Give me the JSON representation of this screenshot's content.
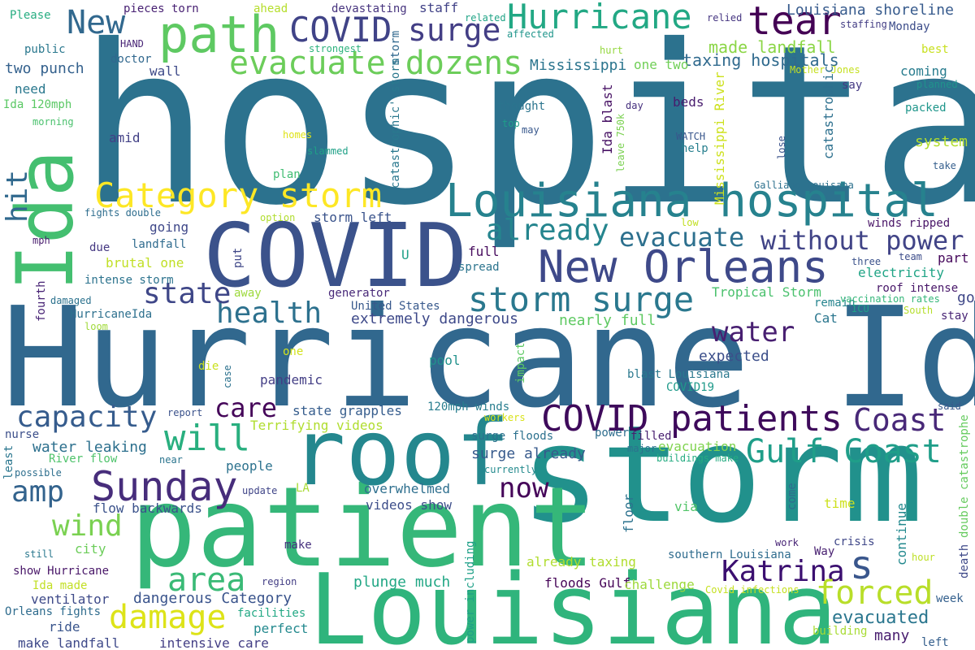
{
  "words": [
    {
      "text": "hospital",
      "color": "#2c728e",
      "vertical": false
    },
    {
      "text": "Hurricane Ida",
      "color": "#31688e",
      "vertical": false
    },
    {
      "text": "storm",
      "color": "#21918c",
      "vertical": false
    },
    {
      "text": "patient",
      "color": "#35b779",
      "vertical": false
    },
    {
      "text": "Louisiana",
      "color": "#2fb47c",
      "vertical": false
    },
    {
      "text": "roof",
      "color": "#24878e",
      "vertical": false
    },
    {
      "text": "COVID",
      "color": "#3b528b",
      "vertical": false
    },
    {
      "text": "Ida",
      "color": "#44bf70",
      "vertical": true
    },
    {
      "text": "path",
      "color": "#5ec962",
      "vertical": false
    },
    {
      "text": "Louisiana hospital",
      "color": "#26828e",
      "vertical": false
    },
    {
      "text": "New Orleans",
      "color": "#3e4989",
      "vertical": false
    },
    {
      "text": "Hurricane",
      "color": "#22a884",
      "vertical": false
    },
    {
      "text": "tear",
      "color": "#440154",
      "vertical": false
    },
    {
      "text": "Sunday",
      "color": "#472d7b",
      "vertical": false
    },
    {
      "text": "COVID patients",
      "color": "#3e0a5b",
      "vertical": false
    },
    {
      "text": "COVID",
      "color": "#404387",
      "vertical": false
    },
    {
      "text": "surge",
      "color": "#433e85",
      "vertical": false
    },
    {
      "text": "New",
      "color": "#31688e",
      "vertical": false
    },
    {
      "text": "Category storm",
      "color": "#fde725",
      "vertical": false
    },
    {
      "text": "evacuate dozens",
      "color": "#6ccd5a",
      "vertical": false
    },
    {
      "text": "storm surge",
      "color": "#2a788e",
      "vertical": false
    },
    {
      "text": "Gulf Coast",
      "color": "#1f9e89",
      "vertical": false
    },
    {
      "text": "Katrina",
      "color": "#3b0f70",
      "vertical": false
    },
    {
      "text": "Coast",
      "color": "#482878",
      "vertical": false
    },
    {
      "text": "s",
      "color": "#39568c",
      "vertical": false
    },
    {
      "text": "damage",
      "color": "#dde318",
      "vertical": false
    },
    {
      "text": "forced",
      "color": "#b8de29",
      "vertical": false
    },
    {
      "text": "area",
      "color": "#3aba76",
      "vertical": false
    },
    {
      "text": "will",
      "color": "#29af7f",
      "vertical": false
    },
    {
      "text": "amp",
      "color": "#33638d",
      "vertical": false
    },
    {
      "text": "capacity",
      "color": "#365c8d",
      "vertical": false
    },
    {
      "text": "wind",
      "color": "#7ad151",
      "vertical": false
    },
    {
      "text": "health",
      "color": "#2d718e",
      "vertical": false
    },
    {
      "text": "state",
      "color": "#3f4788",
      "vertical": false
    },
    {
      "text": "already",
      "color": "#25858e",
      "vertical": false
    },
    {
      "text": "evacuate",
      "color": "#2d708e",
      "vertical": false
    },
    {
      "text": "without power",
      "color": "#414487",
      "vertical": false
    },
    {
      "text": "water",
      "color": "#481f71",
      "vertical": false
    },
    {
      "text": "care",
      "color": "#46075a",
      "vertical": false
    },
    {
      "text": "now",
      "color": "#450559",
      "vertical": false
    },
    {
      "text": "hit",
      "color": "#30698e",
      "vertical": true
    },
    {
      "text": "evacuated",
      "color": "#2a768e",
      "vertical": false
    },
    {
      "text": "plunge much",
      "color": "#22a785",
      "vertical": false
    },
    {
      "text": "dangerous Category",
      "color": "#3a548c",
      "vertical": false
    },
    {
      "text": "Louisiana shoreline",
      "color": "#375b8d",
      "vertical": false
    },
    {
      "text": "made landfall",
      "color": "#8bd646",
      "vertical": false
    },
    {
      "text": "taxing hospitals",
      "color": "#306a8e",
      "vertical": false
    },
    {
      "text": "Mississippi",
      "color": "#2b758e",
      "vertical": false
    },
    {
      "text": "staff",
      "color": "#414287",
      "vertical": false
    },
    {
      "text": "devastating",
      "color": "#46337e",
      "vertical": false
    },
    {
      "text": "pieces torn",
      "color": "#482173",
      "vertical": false
    },
    {
      "text": "ahead",
      "color": "#b5de2b",
      "vertical": false
    },
    {
      "text": "Please",
      "color": "#27ad81",
      "vertical": false
    },
    {
      "text": "related",
      "color": "#20a486",
      "vertical": false
    },
    {
      "text": "affected",
      "color": "#1f958b",
      "vertical": false
    },
    {
      "text": "relied",
      "color": "#453581",
      "vertical": false
    },
    {
      "text": "staffing",
      "color": "#433d84",
      "vertical": false
    },
    {
      "text": "Monday",
      "color": "#3d4d8a",
      "vertical": false
    },
    {
      "text": "best",
      "color": "#c8e020",
      "vertical": false
    },
    {
      "text": "HAND",
      "color": "#482576",
      "vertical": false
    },
    {
      "text": "strongest",
      "color": "#2db27d",
      "vertical": false
    },
    {
      "text": "public",
      "color": "#2a788e",
      "vertical": false
    },
    {
      "text": "doctor",
      "color": "#31688e",
      "vertical": false
    },
    {
      "text": "two punch",
      "color": "#34618d",
      "vertical": false
    },
    {
      "text": "wall",
      "color": "#3e4a89",
      "vertical": false
    },
    {
      "text": "need",
      "color": "#2a788e",
      "vertical": false
    },
    {
      "text": "Ida 120mph",
      "color": "#5ac864",
      "vertical": false
    },
    {
      "text": "morning",
      "color": "#4ac16d",
      "vertical": false
    },
    {
      "text": "amid",
      "color": "#424086",
      "vertical": false
    },
    {
      "text": "homes",
      "color": "#dfe318",
      "vertical": false
    },
    {
      "text": "slammed",
      "color": "#1fa187",
      "vertical": false
    },
    {
      "text": "plan",
      "color": "#40bd72",
      "vertical": false
    },
    {
      "text": "one two",
      "color": "#70cf57",
      "vertical": false
    },
    {
      "text": "hurt",
      "color": "#95d840",
      "vertical": false
    },
    {
      "text": "coming",
      "color": "#287c8e",
      "vertical": false
    },
    {
      "text": "say",
      "color": "#443983",
      "vertical": false
    },
    {
      "text": "planned",
      "color": "#20938c",
      "vertical": false
    },
    {
      "text": "packed",
      "color": "#1f968b",
      "vertical": false
    },
    {
      "text": "thought",
      "color": "#2b748e",
      "vertical": false
    },
    {
      "text": "top",
      "color": "#1f9e89",
      "vertical": false
    },
    {
      "text": "may",
      "color": "#38588c",
      "vertical": false
    },
    {
      "text": "day",
      "color": "#46307e",
      "vertical": false
    },
    {
      "text": "beds",
      "color": "#481c6e",
      "vertical": false
    },
    {
      "text": "help",
      "color": "#277f8e",
      "vertical": false
    },
    {
      "text": "WATCH",
      "color": "#39568c",
      "vertical": false
    },
    {
      "text": "system",
      "color": "#b2dd2d",
      "vertical": false
    },
    {
      "text": "take",
      "color": "#355f8d",
      "vertical": false
    },
    {
      "text": "Galliano Louisana",
      "color": "#2d718e",
      "vertical": false
    },
    {
      "text": "low",
      "color": "#c2df23",
      "vertical": false
    },
    {
      "text": "option",
      "color": "#b0dd2f",
      "vertical": false
    },
    {
      "text": "fights double",
      "color": "#2e6d8e",
      "vertical": false
    },
    {
      "text": "going",
      "color": "#3f4889",
      "vertical": false
    },
    {
      "text": "storm left",
      "color": "#3a538b",
      "vertical": false
    },
    {
      "text": "mph",
      "color": "#481b6d",
      "vertical": false
    },
    {
      "text": "landfall",
      "color": "#2f6b8e",
      "vertical": false
    },
    {
      "text": "due",
      "color": "#453882",
      "vertical": false
    },
    {
      "text": "brutal one",
      "color": "#c0df25",
      "vertical": false
    },
    {
      "text": "intense storm",
      "color": "#2c738e",
      "vertical": false
    },
    {
      "text": "full",
      "color": "#460a5d",
      "vertical": false
    },
    {
      "text": "spread",
      "color": "#2b748e",
      "vertical": false
    },
    {
      "text": "U",
      "color": "#1fa088",
      "vertical": false
    },
    {
      "text": "winds ripped",
      "color": "#481467",
      "vertical": false
    },
    {
      "text": "team",
      "color": "#3d4d8a",
      "vertical": false
    },
    {
      "text": "three",
      "color": "#3b528b",
      "vertical": false
    },
    {
      "text": "part",
      "color": "#46085c",
      "vertical": false
    },
    {
      "text": "electricity",
      "color": "#20a486",
      "vertical": false
    },
    {
      "text": "roof intense",
      "color": "#481769",
      "vertical": false
    },
    {
      "text": "go",
      "color": "#3f4788",
      "vertical": false
    },
    {
      "text": "Tropical Storm",
      "color": "#4ac16d",
      "vertical": false
    },
    {
      "text": "generator",
      "color": "#482979",
      "vertical": false
    },
    {
      "text": "remain",
      "color": "#25848e",
      "vertical": false
    },
    {
      "text": "vaccination rates",
      "color": "#34b679",
      "vertical": false
    },
    {
      "text": "ICU",
      "color": "#1fa188",
      "vertical": false
    },
    {
      "text": "Cat",
      "color": "#2a768e",
      "vertical": false
    },
    {
      "text": "stay",
      "color": "#482475",
      "vertical": false
    },
    {
      "text": "South",
      "color": "#b5de2b",
      "vertical": false
    },
    {
      "text": "damaged",
      "color": "#2c728e",
      "vertical": false
    },
    {
      "text": "away",
      "color": "#9dd93b",
      "vertical": false
    },
    {
      "text": "HurricaneIda",
      "color": "#2d708e",
      "vertical": false
    },
    {
      "text": "United States",
      "color": "#38598c",
      "vertical": false
    },
    {
      "text": "extremely dangerous",
      "color": "#3e4989",
      "vertical": false
    },
    {
      "text": "nearly full",
      "color": "#5ec962",
      "vertical": false
    },
    {
      "text": "loom",
      "color": "#a0da39",
      "vertical": false
    },
    {
      "text": "one",
      "color": "#d2e21b",
      "vertical": false
    },
    {
      "text": "pool",
      "color": "#21918c",
      "vertical": false
    },
    {
      "text": "expected",
      "color": "#3c4f8a",
      "vertical": false
    },
    {
      "text": "die",
      "color": "#cae11f",
      "vertical": false
    },
    {
      "text": "pandemic",
      "color": "#433e85",
      "vertical": false
    },
    {
      "text": "blast Louisiana",
      "color": "#2a788e",
      "vertical": false
    },
    {
      "text": "COVID19",
      "color": "#1f9a8a",
      "vertical": false
    },
    {
      "text": "report",
      "color": "#3b528b",
      "vertical": false
    },
    {
      "text": "state grapples",
      "color": "#365d8d",
      "vertical": false
    },
    {
      "text": "120mph winds",
      "color": "#287d8e",
      "vertical": false
    },
    {
      "text": "workers",
      "color": "#d8e219",
      "vertical": false
    },
    {
      "text": "said",
      "color": "#38598c",
      "vertical": false
    },
    {
      "text": "nurse",
      "color": "#3c4f8a",
      "vertical": false
    },
    {
      "text": "Terrifying videos",
      "color": "#b0dd2f",
      "vertical": false
    },
    {
      "text": "power",
      "color": "#2e6e8e",
      "vertical": false
    },
    {
      "text": "filled",
      "color": "#481f70",
      "vertical": false
    },
    {
      "text": "surge floods",
      "color": "#2c718e",
      "vertical": false
    },
    {
      "text": "major",
      "color": "#2c728e",
      "vertical": false
    },
    {
      "text": "water leaking",
      "color": "#2d708e",
      "vertical": false
    },
    {
      "text": "surge already",
      "color": "#375a8c",
      "vertical": false
    },
    {
      "text": "evacuation",
      "color": "#7fd34e",
      "vertical": false
    },
    {
      "text": "River flow",
      "color": "#4ec36b",
      "vertical": false
    },
    {
      "text": "near",
      "color": "#2b758e",
      "vertical": false
    },
    {
      "text": "buildings make",
      "color": "#25ac82",
      "vertical": false
    },
    {
      "text": "possible",
      "color": "#2e6f8e",
      "vertical": false
    },
    {
      "text": "currently",
      "color": "#238a8d",
      "vertical": false
    },
    {
      "text": "people",
      "color": "#2c728e",
      "vertical": false
    },
    {
      "text": "city",
      "color": "#6ccd5a",
      "vertical": false
    },
    {
      "text": "LA",
      "color": "#a8db34",
      "vertical": false
    },
    {
      "text": "update",
      "color": "#404588",
      "vertical": false
    },
    {
      "text": "overwhelmed",
      "color": "#2e6f8e",
      "vertical": false
    },
    {
      "text": "flow backwards",
      "color": "#3b528b",
      "vertical": false
    },
    {
      "text": "videos show",
      "color": "#3d4e8a",
      "vertical": false
    },
    {
      "text": "time",
      "color": "#cde11d",
      "vertical": false
    },
    {
      "text": "still",
      "color": "#2a788e",
      "vertical": false
    },
    {
      "text": "make",
      "color": "#46307e",
      "vertical": false
    },
    {
      "text": "via",
      "color": "#52c569",
      "vertical": false
    },
    {
      "text": "work",
      "color": "#482576",
      "vertical": false
    },
    {
      "text": "crisis",
      "color": "#3f4788",
      "vertical": false
    },
    {
      "text": "show Hurricane",
      "color": "#481668",
      "vertical": false
    },
    {
      "text": "Way",
      "color": "#482071",
      "vertical": false
    },
    {
      "text": "Ida made",
      "color": "#c2df23",
      "vertical": false
    },
    {
      "text": "already taxing",
      "color": "#b0dd2f",
      "vertical": false
    },
    {
      "text": "southern Louisiana",
      "color": "#2f6c8e",
      "vertical": false
    },
    {
      "text": "hour",
      "color": "#bddf26",
      "vertical": false
    },
    {
      "text": "region",
      "color": "#433e85",
      "vertical": false
    },
    {
      "text": "floods Gulf",
      "color": "#450457",
      "vertical": false
    },
    {
      "text": "challenge",
      "color": "#9dd93b",
      "vertical": false
    },
    {
      "text": "Covid infections",
      "color": "#c5e021",
      "vertical": false
    },
    {
      "text": "ventilator",
      "color": "#3e4a89",
      "vertical": false
    },
    {
      "text": "facilities",
      "color": "#22a884",
      "vertical": false
    },
    {
      "text": "week",
      "color": "#34608d",
      "vertical": false
    },
    {
      "text": "Orleans fights",
      "color": "#2f6c8e",
      "vertical": false
    },
    {
      "text": "ride",
      "color": "#39558c",
      "vertical": false
    },
    {
      "text": "perfect",
      "color": "#23898e",
      "vertical": false
    },
    {
      "text": "many",
      "color": "#481d6f",
      "vertical": false
    },
    {
      "text": "building",
      "color": "#a8db34",
      "vertical": false
    },
    {
      "text": "make landfall",
      "color": "#3e4989",
      "vertical": false
    },
    {
      "text": "intensive care",
      "color": "#433e85",
      "vertical": false
    },
    {
      "text": "left",
      "color": "#355f8d",
      "vertical": false
    },
    {
      "text": "fourth",
      "color": "#482475",
      "vertical": true
    },
    {
      "text": "least",
      "color": "#2a768e",
      "vertical": true
    },
    {
      "text": "case",
      "color": "#2c728e",
      "vertical": true
    },
    {
      "text": "put",
      "color": "#3f4788",
      "vertical": true
    },
    {
      "text": "impact",
      "color": "#5cc863",
      "vertical": true
    },
    {
      "text": "power including",
      "color": "#1fa088",
      "vertical": true
    },
    {
      "text": "floor",
      "color": "#2c728e",
      "vertical": true
    },
    {
      "text": "come",
      "color": "#2f6c8e",
      "vertical": true
    },
    {
      "text": "continue",
      "color": "#23898e",
      "vertical": true
    },
    {
      "text": "death",
      "color": "#3e4989",
      "vertical": true
    },
    {
      "text": "double catastrophe",
      "color": "#65cb5e",
      "vertical": true
    },
    {
      "text": "storm",
      "color": "#31688e",
      "vertical": true
    },
    {
      "text": "catastrophic' storm",
      "color": "#2a788e",
      "vertical": true
    },
    {
      "text": "Ida blast",
      "color": "#471164",
      "vertical": true
    },
    {
      "text": "Mississippi River",
      "color": "#cde11d",
      "vertical": true
    },
    {
      "text": "leave 750k",
      "color": "#7ad151",
      "vertical": true
    },
    {
      "text": "lose",
      "color": "#3b528b",
      "vertical": true
    },
    {
      "text": "catastrophic",
      "color": "#2d708e",
      "vertical": true
    },
    {
      "text": "Mother Jones",
      "color": "#c5e021",
      "vertical": false
    }
  ]
}
